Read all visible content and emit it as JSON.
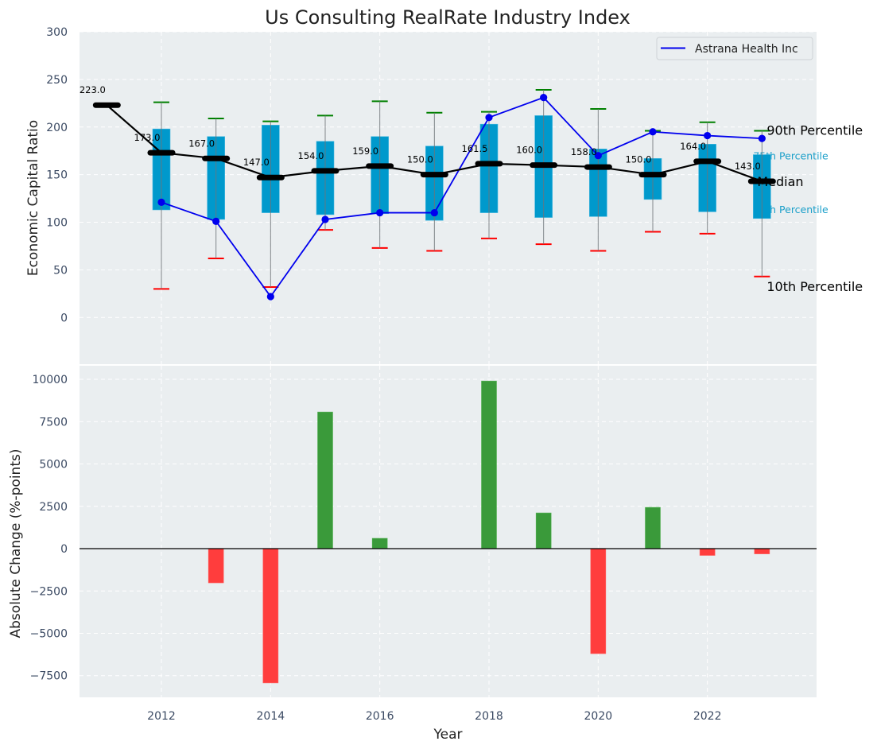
{
  "chart_data": [
    {
      "type": "box-line",
      "title": "Us Consulting RealRate Industry Index",
      "xlabel": "",
      "ylabel": "Economic Capital Ratio",
      "ylim": [
        -49,
        300
      ],
      "xlim": [
        2010.5,
        2024.0
      ],
      "yticks": [
        0,
        50,
        100,
        150,
        200,
        250,
        300
      ],
      "grid": true,
      "legend": {
        "position": "top-right",
        "entries": [
          "Astrana Health Inc"
        ]
      },
      "colors": {
        "box": "#0099cc",
        "median": "#000000",
        "company": "#0000ee",
        "p90_cap": "#008000",
        "p10_cap": "#ff0000",
        "whisker": "#808080",
        "background": "#eaeef0"
      },
      "years": [
        2011,
        2012,
        2013,
        2014,
        2015,
        2016,
        2017,
        2018,
        2019,
        2020,
        2021,
        2022,
        2023
      ],
      "median": [
        223.0,
        173.0,
        167.0,
        147.0,
        154.0,
        159.0,
        150.0,
        161.5,
        160.0,
        158.0,
        150.0,
        164.0,
        143.0
      ],
      "median_labels": [
        "223.0",
        "173.0",
        "167.0",
        "147.0",
        "154.0",
        "159.0",
        "150.0",
        "161.5",
        "160.0",
        "158.0",
        "150.0",
        "164.0",
        "143.0"
      ],
      "boxes": [
        {
          "year": 2012,
          "p10": 30,
          "p25": 113,
          "p75": 198,
          "p90": 226
        },
        {
          "year": 2013,
          "p10": 62,
          "p25": 103,
          "p75": 190,
          "p90": 209
        },
        {
          "year": 2014,
          "p10": 32,
          "p25": 110,
          "p75": 202,
          "p90": 206
        },
        {
          "year": 2015,
          "p10": 92,
          "p25": 108,
          "p75": 185,
          "p90": 212
        },
        {
          "year": 2016,
          "p10": 73,
          "p25": 109,
          "p75": 190,
          "p90": 227
        },
        {
          "year": 2017,
          "p10": 70,
          "p25": 102,
          "p75": 180,
          "p90": 215
        },
        {
          "year": 2018,
          "p10": 83,
          "p25": 110,
          "p75": 203,
          "p90": 216
        },
        {
          "year": 2019,
          "p10": 77,
          "p25": 105,
          "p75": 212,
          "p90": 239
        },
        {
          "year": 2020,
          "p10": 70,
          "p25": 106,
          "p75": 177,
          "p90": 219
        },
        {
          "year": 2021,
          "p10": 90,
          "p25": 124,
          "p75": 167,
          "p90": 196
        },
        {
          "year": 2022,
          "p10": 88,
          "p25": 111,
          "p75": 182,
          "p90": 205
        },
        {
          "year": 2023,
          "p10": 43,
          "p25": 104,
          "p75": 171,
          "p90": 196
        }
      ],
      "company": {
        "name": "Astrana Health Inc",
        "years": [
          2012,
          2013,
          2014,
          2015,
          2016,
          2017,
          2018,
          2019,
          2020,
          2021,
          2022,
          2023
        ],
        "values": [
          121,
          101,
          22,
          103,
          110,
          110,
          210,
          231,
          170,
          195,
          191,
          188
        ]
      },
      "annotations": {
        "p90": "90th Percentile",
        "p75": "75th Percentile",
        "median": "Median",
        "p25": "25th Percentile",
        "p10": "10th Percentile"
      }
    },
    {
      "type": "bar",
      "title": "",
      "xlabel": "Year",
      "ylabel": "Absolute Change (%-points)",
      "ylim": [
        -8780,
        10800
      ],
      "xlim": [
        2010.5,
        2024.0
      ],
      "yticks": [
        -7500,
        -5000,
        -2500,
        0,
        2500,
        5000,
        7500,
        10000
      ],
      "yticklabels": [
        "−7500",
        "−5000",
        "−2500",
        "0",
        "2500",
        "5000",
        "7500",
        "10000"
      ],
      "xticks": [
        2012,
        2014,
        2016,
        2018,
        2020,
        2022
      ],
      "grid": true,
      "colors": {
        "positive": "#3a9a3a",
        "negative": "#ff3d3d",
        "zero_line": "#000000"
      },
      "categories": [
        2012,
        2013,
        2014,
        2015,
        2016,
        2017,
        2018,
        2019,
        2020,
        2021,
        2022,
        2023
      ],
      "values": [
        0,
        -2020,
        -7930,
        8070,
        610,
        0,
        9900,
        2110,
        -6200,
        2440,
        -400,
        -310
      ]
    }
  ]
}
